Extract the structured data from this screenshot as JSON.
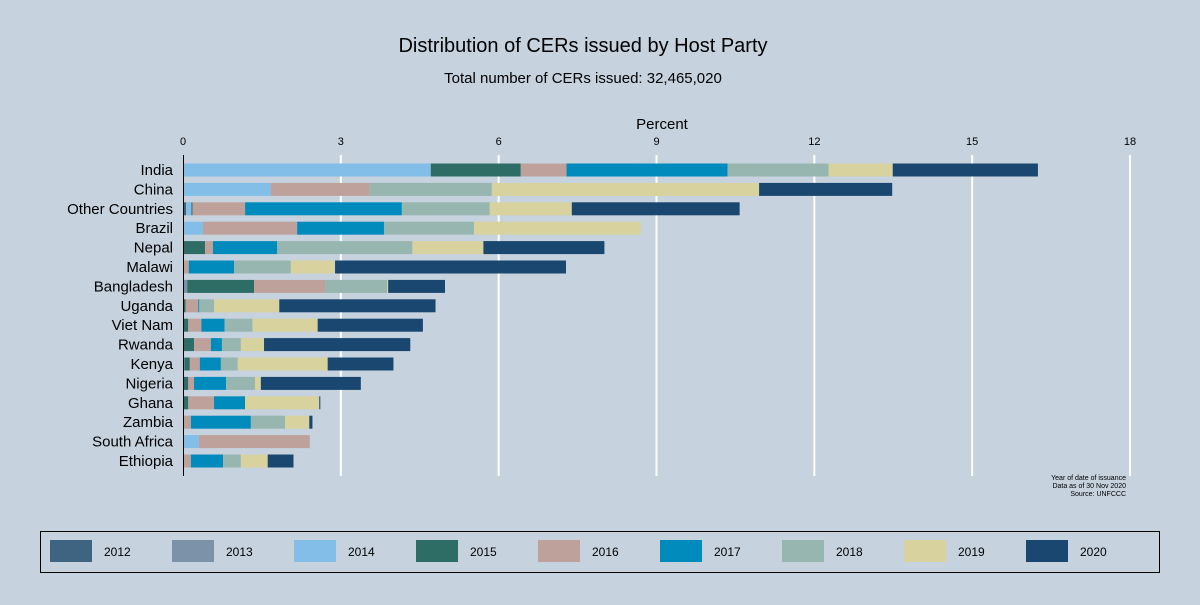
{
  "chart_data": {
    "type": "bar",
    "orientation": "horizontal",
    "stacked": true,
    "title": "Distribution of CERs issued by Host Party",
    "subtitle": "Total number of CERs issued: 32,465,020",
    "xlabel": "Percent",
    "xlim": [
      0,
      18
    ],
    "xticks": [
      "0",
      "3",
      "6",
      "9",
      "12",
      "15",
      "18"
    ],
    "grid": true,
    "legend_placement": "bottom",
    "notes": [
      "Year of date of issuance",
      "Data as of 30 Nov 2020",
      "Source: UNFCCC"
    ],
    "categories": [
      "India",
      "China",
      "Other Countries",
      "Brazil",
      "Nepal",
      "Malawi",
      "Bangladesh",
      "Uganda",
      "Viet Nam",
      "Rwanda",
      "Kenya",
      "Nigeria",
      "Ghana",
      "Zambia",
      "South Africa",
      "Ethiopia"
    ],
    "series": [
      {
        "name": "2012",
        "color": "#3e6481",
        "values": [
          0,
          0,
          0.06,
          0,
          0,
          0,
          0,
          0,
          0,
          0,
          0,
          0,
          0,
          0,
          0,
          0
        ]
      },
      {
        "name": "2013",
        "color": "#7b92a8",
        "values": [
          0,
          0,
          0,
          0,
          0,
          0,
          0.08,
          0,
          0,
          0,
          0.03,
          0,
          0,
          0,
          0,
          0
        ]
      },
      {
        "name": "2014",
        "color": "#82bee8",
        "values": [
          4.71,
          1.67,
          0.1,
          0.38,
          0,
          0,
          0,
          0,
          0,
          0,
          0,
          0,
          0,
          0,
          0.3,
          0
        ]
      },
      {
        "name": "2015",
        "color": "#2d6d66",
        "values": [
          1.71,
          0,
          0.02,
          0,
          0.42,
          0,
          1.27,
          0.05,
          0.1,
          0.21,
          0.1,
          0.1,
          0.1,
          0,
          0,
          0
        ]
      },
      {
        "name": "2016",
        "color": "#bfa19c",
        "values": [
          0.87,
          1.88,
          1.0,
          1.79,
          0.15,
          0.11,
          1.35,
          0.24,
          0.25,
          0.32,
          0.19,
          0.11,
          0.49,
          0.15,
          2.11,
          0.15
        ]
      },
      {
        "name": "2017",
        "color": "#008bbc",
        "values": [
          3.06,
          0,
          2.98,
          1.65,
          1.22,
          0.86,
          0,
          0.02,
          0.44,
          0.21,
          0.4,
          0.61,
          0.59,
          1.14,
          0,
          0.61
        ]
      },
      {
        "name": "2018",
        "color": "#97b6b0",
        "values": [
          1.92,
          2.32,
          1.67,
          1.71,
          2.57,
          1.08,
          1.18,
          0.28,
          0.53,
          0.36,
          0.32,
          0.55,
          0,
          0.65,
          0,
          0.34
        ]
      },
      {
        "name": "2019",
        "color": "#d7d29e",
        "values": [
          1.22,
          5.08,
          1.56,
          3.17,
          1.35,
          0.84,
          0.02,
          1.24,
          1.24,
          0.44,
          1.71,
          0.11,
          1.41,
          0.46,
          0,
          0.51
        ]
      },
      {
        "name": "2020",
        "color": "#1a476f",
        "values": [
          2.76,
          2.53,
          3.19,
          0,
          2.3,
          4.39,
          1.08,
          2.97,
          2.0,
          2.78,
          1.25,
          1.9,
          0.02,
          0.06,
          0,
          0.49
        ]
      }
    ]
  }
}
